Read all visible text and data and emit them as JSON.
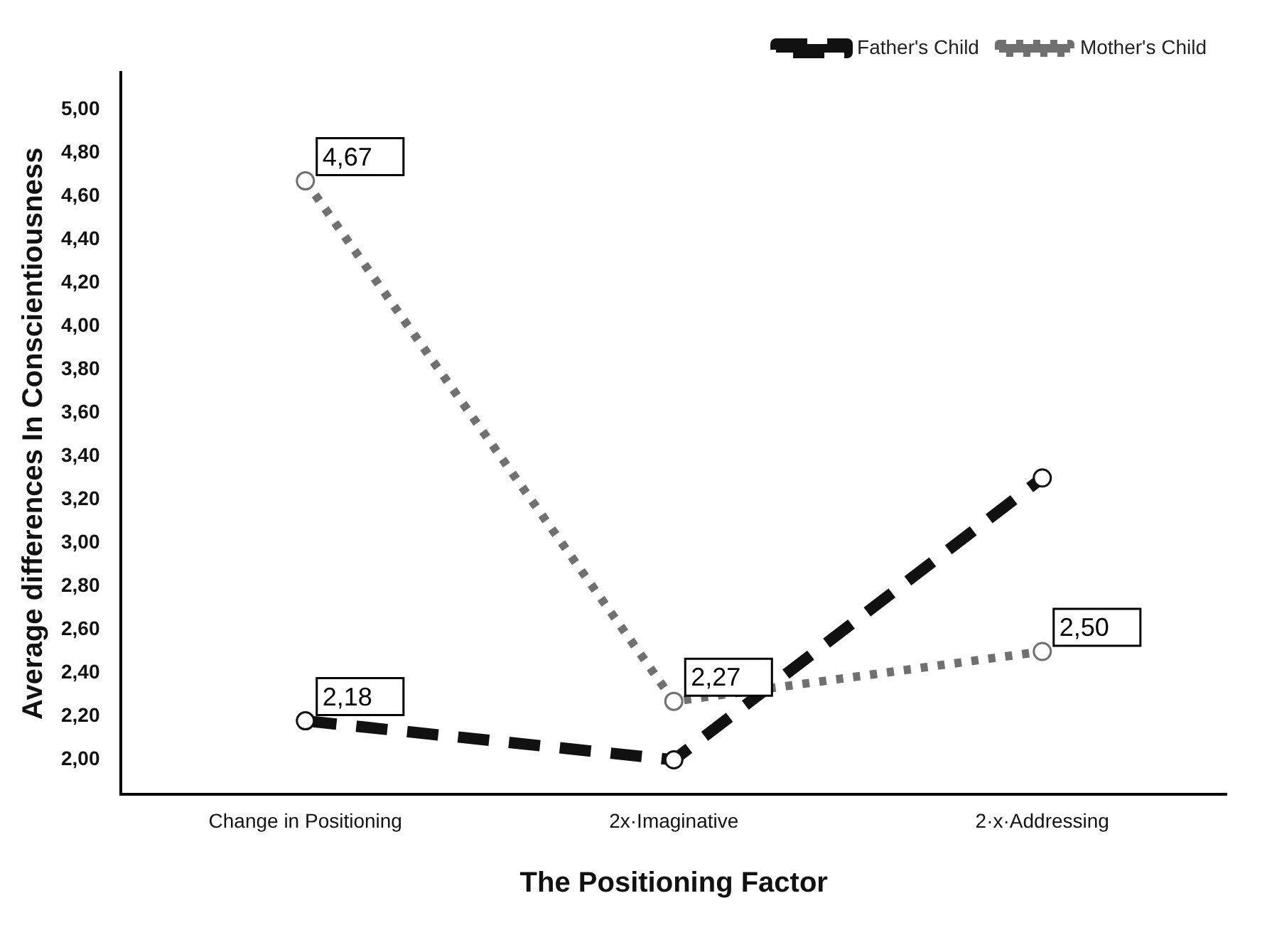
{
  "chart_data": {
    "type": "line",
    "xlabel": "The Positioning Factor",
    "ylabel": "Average differences In Conscientiousness",
    "categories": [
      "Change in Positioning",
      "2x·Imaginative",
      "2·x·Addressing"
    ],
    "series": [
      {
        "name": "Father's Child",
        "color": "#111111",
        "line_style": "dashed",
        "values": [
          2.18,
          2.0,
          3.3
        ],
        "value_labels": [
          "2,18",
          null,
          null
        ]
      },
      {
        "name": "Mother's Child",
        "color": "#707070",
        "line_style": "dotted",
        "values": [
          4.67,
          2.27,
          2.5
        ],
        "value_labels": [
          "4,67",
          "2,27",
          "2,50"
        ]
      }
    ],
    "ylim": [
      1.84,
      5.17
    ],
    "yticks": [
      {
        "value": 2,
        "label": "2,00"
      },
      {
        "value": 2.2,
        "label": "2,20"
      },
      {
        "value": 2.4,
        "label": "2,40"
      },
      {
        "value": 2.6,
        "label": "2,60"
      },
      {
        "value": 2.8,
        "label": "2,80"
      },
      {
        "value": 3,
        "label": "3,00"
      },
      {
        "value": 3.2,
        "label": "3,20"
      },
      {
        "value": 3.4,
        "label": "3,40"
      },
      {
        "value": 3.6,
        "label": "3,60"
      },
      {
        "value": 3.8,
        "label": "3,80"
      },
      {
        "value": 4,
        "label": "4,00"
      },
      {
        "value": 4.2,
        "label": "4,20"
      },
      {
        "value": 4.4,
        "label": "4,40"
      },
      {
        "value": 4.6,
        "label": "4,60"
      },
      {
        "value": 4.8,
        "label": "4,80"
      },
      {
        "value": 5,
        "label": "5,00"
      }
    ],
    "grid": false,
    "legend": "top right",
    "marker": "circle"
  }
}
